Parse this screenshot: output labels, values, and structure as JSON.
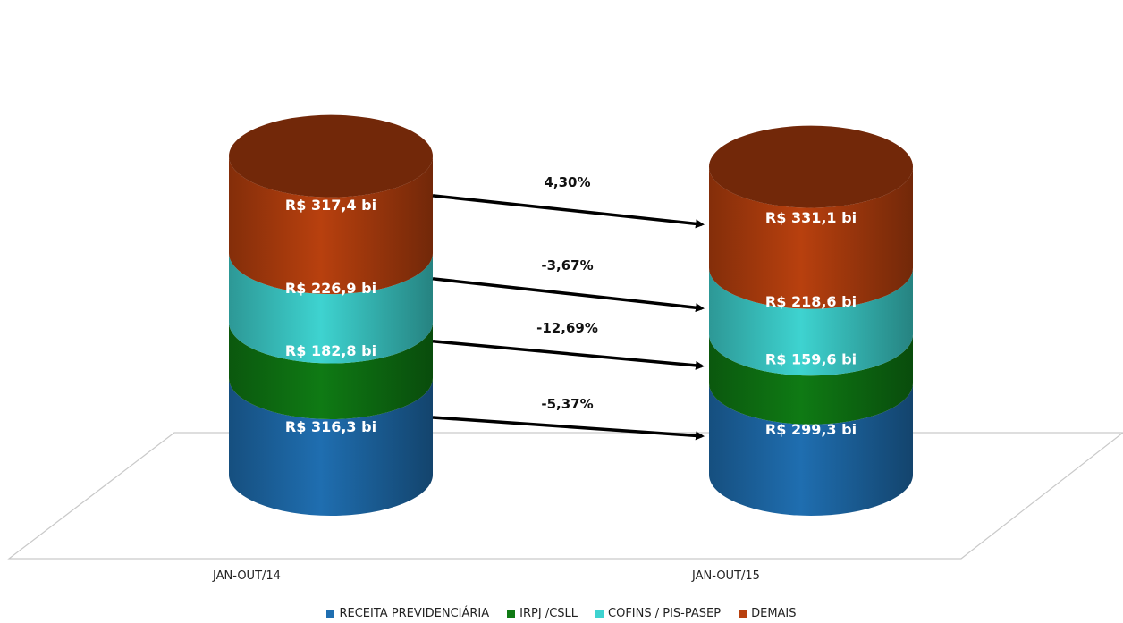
{
  "chart_data": {
    "type": "stacked-cylinder-bar",
    "categories": [
      "JAN-OUT/14",
      "JAN-OUT/15"
    ],
    "series": [
      {
        "name": "RECEITA PREVIDENCIÁRIA",
        "color": "#1f6eb0",
        "values": [
          316.3,
          299.3
        ],
        "labels": [
          "R$ 316,3  bi",
          "R$ 299,3  bi"
        ],
        "change": "-5,37%"
      },
      {
        "name": "IRPJ /CSLL",
        "color": "#0f7a14",
        "values": [
          182.8,
          159.6
        ],
        "labels": [
          "R$ 182,8  bi",
          "R$ 159,6  bi"
        ],
        "change": "-12,69%"
      },
      {
        "name": "COFINS / PIS-PASEP",
        "color": "#3ed3d0",
        "values": [
          226.9,
          218.6
        ],
        "labels": [
          "R$ 226,9  bi",
          "R$ 218,6  bi"
        ],
        "change": "-3,67%"
      },
      {
        "name": "DEMAIS",
        "color": "#b8400e",
        "values": [
          317.4,
          331.1
        ],
        "labels": [
          "R$ 317,4  bi",
          "R$ 331,1  bi"
        ],
        "change": "4,30%"
      }
    ],
    "legend_position": "bottom",
    "grid": false
  }
}
